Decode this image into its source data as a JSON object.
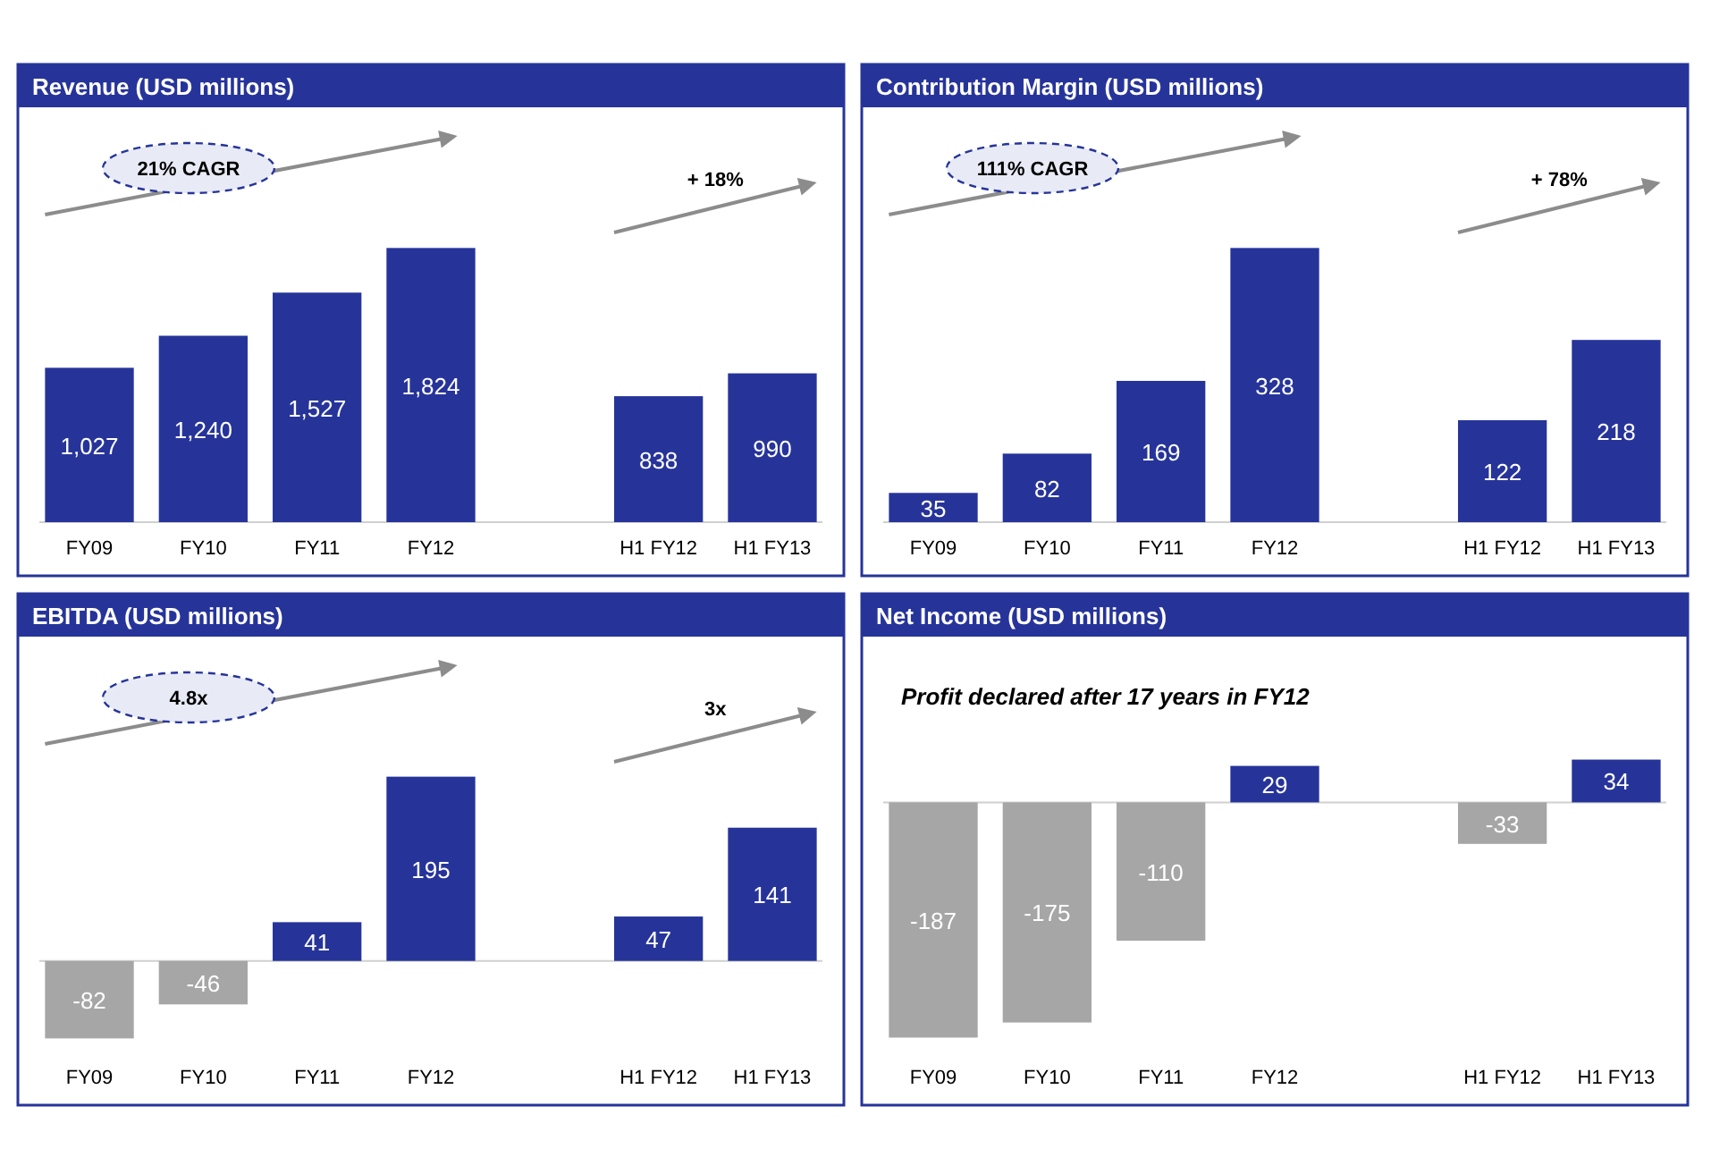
{
  "chart_data": [
    {
      "type": "bar",
      "title": "Revenue (USD millions)",
      "categories": [
        "FY09",
        "FY10",
        "FY11",
        "FY12",
        null,
        "H1 FY12",
        "H1 FY13"
      ],
      "values": [
        1027,
        1240,
        1527,
        1824,
        null,
        838,
        990
      ],
      "value_labels": [
        "1,027",
        "1,240",
        "1,527",
        "1,824",
        null,
        "838",
        "990"
      ],
      "colors": [
        "#26349a",
        "#26349a",
        "#26349a",
        "#26349a",
        null,
        "#26349a",
        "#26349a"
      ],
      "tick_labels": "x",
      "annotations": [
        "21% CAGR",
        "+ 18%"
      ]
    },
    {
      "type": "bar",
      "title": "Contribution Margin (USD millions)",
      "categories": [
        "FY09",
        "FY10",
        "FY11",
        "FY12",
        null,
        "H1 FY12",
        "H1 FY13"
      ],
      "values": [
        35,
        82,
        169,
        328,
        null,
        122,
        218
      ],
      "colors": [
        "#26349a",
        "#26349a",
        "#26349a",
        "#26349a",
        null,
        "#26349a",
        "#26349a"
      ],
      "tick_labels": "x",
      "data_labels": true,
      "annotations": [
        "111% CAGR",
        "+ 78%"
      ]
    },
    {
      "type": "bar",
      "title": "EBITDA (USD millions)",
      "categories": [
        "FY09",
        "FY10",
        "FY11",
        "FY12",
        null,
        "H1 FY12",
        "H1 FY13"
      ],
      "values": [
        -82,
        -46,
        41,
        195,
        null,
        47,
        141
      ],
      "colors": [
        "#a6a6a6",
        "#a6a6a6",
        "#26349a",
        "#26349a",
        null,
        "#26349a",
        "#26349a"
      ],
      "tick_labels": "x",
      "data_labels": true,
      "annotations": [
        "4.8x",
        "3x"
      ]
    },
    {
      "type": "bar",
      "title": "Net Income (USD millions)",
      "categories": [
        "FY09",
        "FY10",
        "FY11",
        "FY12",
        null,
        "H1 FY12",
        "H1 FY13"
      ],
      "values": [
        -187,
        -175,
        -110,
        29,
        null,
        -33,
        34
      ],
      "colors": [
        "#a6a6a6",
        "#a6a6a6",
        "#a6a6a6",
        "#26349a",
        null,
        "#a6a6a6",
        "#26349a"
      ],
      "tick_labels": "x",
      "data_labels": true,
      "annotations": [
        "Profit declared after 17 years in FY12"
      ]
    }
  ]
}
